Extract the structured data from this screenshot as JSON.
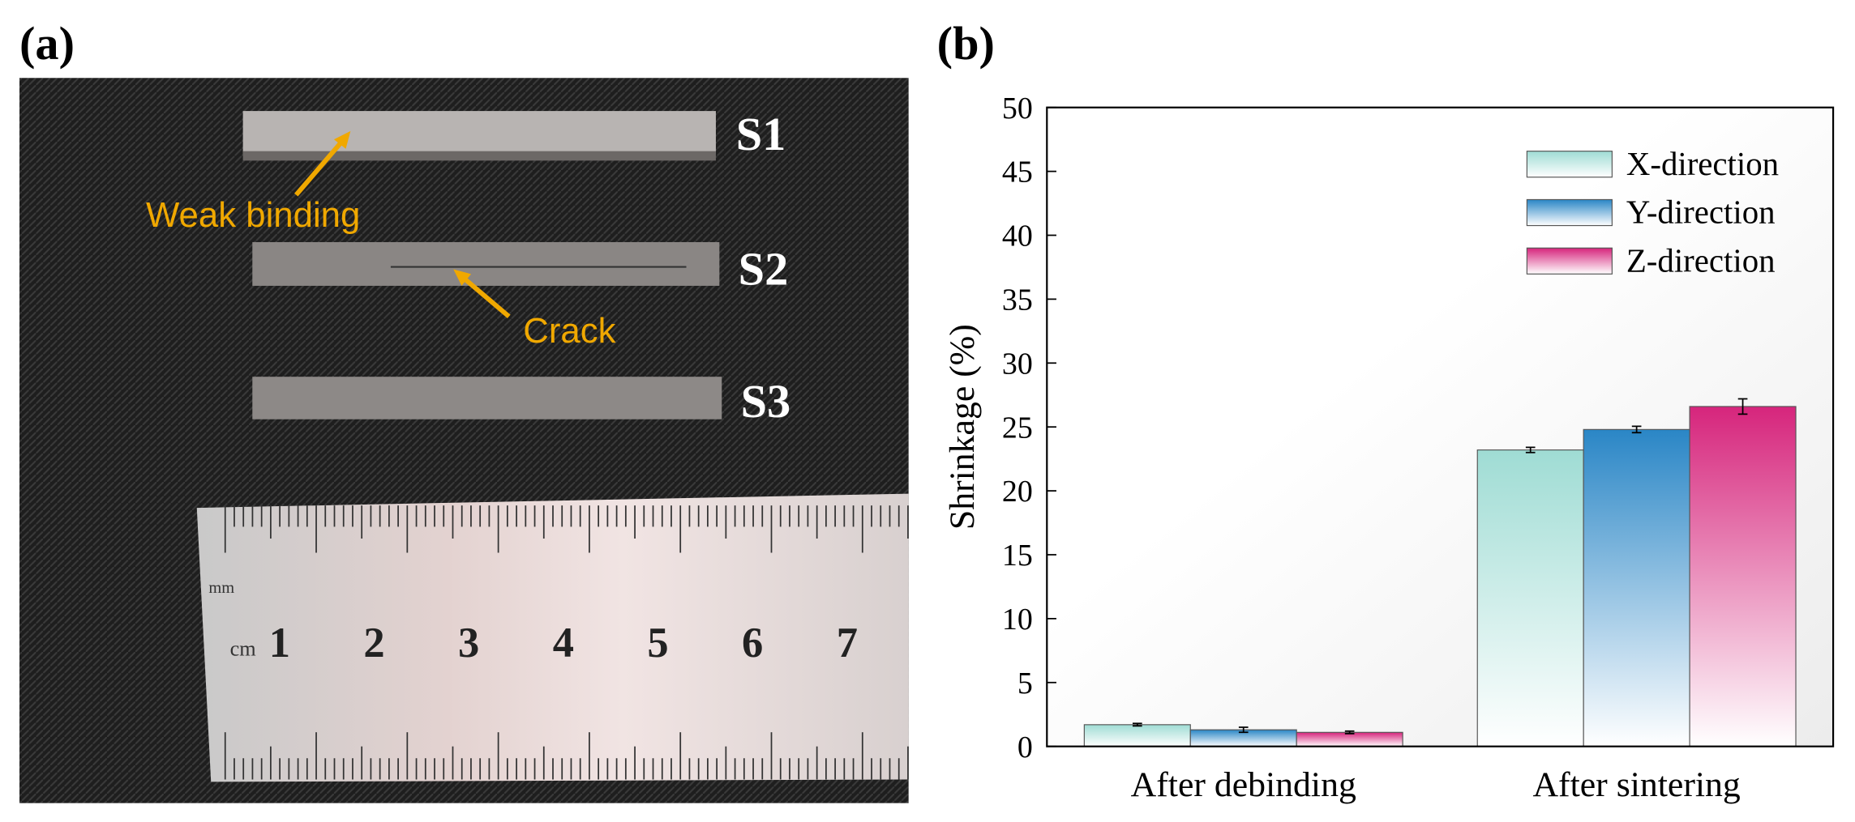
{
  "panel_labels": [
    "(a)",
    "(b)"
  ],
  "photo": {
    "samples": [
      "S1",
      "S2",
      "S3"
    ],
    "annotations": [
      "Weak binding",
      "Crack"
    ],
    "ruler_units": [
      "mm",
      "cm"
    ],
    "ruler_numbers": [
      "1",
      "2",
      "3",
      "4",
      "5",
      "6",
      "7"
    ]
  },
  "chart_data": {
    "type": "bar",
    "y_label": "Shrinkage (%)",
    "categories": [
      "After debinding",
      "After sintering"
    ],
    "series": [
      {
        "name": "X-direction",
        "color": "#9fdcd4",
        "values": [
          1.7,
          23.2
        ],
        "errors": [
          0.1,
          0.2
        ]
      },
      {
        "name": "Y-direction",
        "color": "#2a86c6",
        "values": [
          1.3,
          24.8
        ],
        "errors": [
          0.2,
          0.25
        ]
      },
      {
        "name": "Z-direction",
        "color": "#d6257c",
        "values": [
          1.1,
          26.6
        ],
        "errors": [
          0.1,
          0.6
        ]
      }
    ],
    "ylim": [
      0,
      50
    ],
    "yticks": [
      0,
      5,
      10,
      15,
      20,
      25,
      30,
      35,
      40,
      45,
      50
    ],
    "legend": "upper right",
    "grid": false
  }
}
